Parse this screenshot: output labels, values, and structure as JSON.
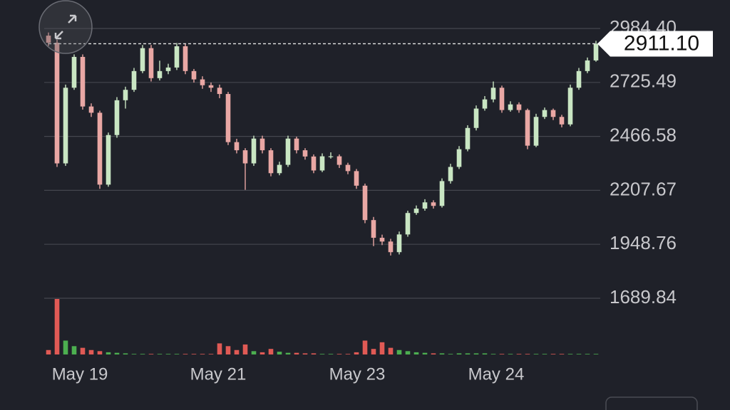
{
  "chart_data": {
    "type": "candlestick",
    "open": [
      2950,
      2916,
      2337,
      2700,
      2848,
      2610,
      2580,
      2235,
      2473,
      2640,
      2690,
      2780,
      2890,
      2746,
      2780,
      2797,
      2899,
      2780,
      2740,
      2712,
      2700,
      2670,
      2439,
      2400,
      2337,
      2456,
      2400,
      2290,
      2330,
      2456,
      2400,
      2370,
      2303,
      2371,
      2371,
      2330,
      2300,
      2230,
      2065,
      1980,
      1962,
      1911,
      1996,
      2099,
      2120,
      2150,
      2133,
      2252,
      2320,
      2405,
      2507,
      2600,
      2644,
      2700,
      2593,
      2620,
      2593,
      2422,
      2560,
      2593,
      2560,
      2524,
      2700,
      2780,
      2831
    ],
    "high": [
      2965,
      2930,
      2715,
      2860,
      2860,
      2625,
      2590,
      2485,
      2655,
      2705,
      2795,
      2905,
      2905,
      2830,
      2815,
      2915,
      2910,
      2790,
      2755,
      2725,
      2715,
      2680,
      2455,
      2410,
      2470,
      2470,
      2410,
      2345,
      2470,
      2465,
      2410,
      2380,
      2385,
      2390,
      2380,
      2340,
      2310,
      2240,
      2080,
      1995,
      1975,
      2010,
      2110,
      2135,
      2165,
      2160,
      2265,
      2335,
      2420,
      2520,
      2615,
      2660,
      2730,
      2710,
      2635,
      2630,
      2600,
      2575,
      2605,
      2600,
      2570,
      2715,
      2795,
      2845,
      2925
    ],
    "low": [
      2900,
      2320,
      2325,
      2690,
      2595,
      2560,
      2215,
      2225,
      2460,
      2600,
      2680,
      2770,
      2730,
      2735,
      2765,
      2785,
      2765,
      2725,
      2695,
      2680,
      2650,
      2425,
      2385,
      2210,
      2325,
      2385,
      2275,
      2280,
      2320,
      2385,
      2355,
      2290,
      2295,
      2360,
      2315,
      2285,
      2215,
      2050,
      1940,
      1945,
      1895,
      1900,
      1985,
      2090,
      2110,
      2120,
      2125,
      2240,
      2310,
      2395,
      2495,
      2590,
      2630,
      2580,
      2585,
      2580,
      2405,
      2415,
      2550,
      2545,
      2510,
      2515,
      2690,
      2770,
      2825
    ],
    "close": [
      2916,
      2337,
      2700,
      2848,
      2610,
      2580,
      2235,
      2473,
      2640,
      2690,
      2780,
      2890,
      2746,
      2780,
      2797,
      2899,
      2780,
      2740,
      2712,
      2700,
      2670,
      2439,
      2400,
      2337,
      2456,
      2400,
      2290,
      2330,
      2456,
      2400,
      2370,
      2303,
      2371,
      2371,
      2330,
      2300,
      2230,
      2065,
      1980,
      1962,
      1911,
      1996,
      2099,
      2120,
      2150,
      2133,
      2252,
      2320,
      2405,
      2507,
      2600,
      2644,
      2700,
      2593,
      2620,
      2593,
      2422,
      2560,
      2593,
      2560,
      2524,
      2700,
      2780,
      2831,
      2911.1
    ],
    "volume": [
      8,
      100,
      25,
      15,
      12,
      8,
      6,
      4,
      3,
      2,
      1,
      1,
      1,
      1,
      1,
      1,
      1,
      1,
      1,
      1,
      20,
      15,
      8,
      18,
      6,
      4,
      10,
      5,
      3,
      3,
      2,
      2,
      1,
      1,
      1,
      1,
      4,
      25,
      10,
      22,
      12,
      8,
      6,
      4,
      3,
      2,
      2,
      1,
      2,
      2,
      2,
      2,
      1,
      1,
      1,
      1,
      1,
      1,
      1,
      1,
      1,
      1,
      1,
      1,
      1
    ],
    "up_color": "#c9e6c3",
    "down_color": "#e9a7a4",
    "volume_up_color": "#4caf50",
    "volume_down_color": "#e05a55",
    "xlim": [
      -0.5,
      64.5
    ],
    "xticks": [
      {
        "value": 3.67,
        "label": "May 19"
      },
      {
        "value": 19.83,
        "label": "May 21"
      },
      {
        "value": 36.08,
        "label": "May 23"
      },
      {
        "value": 52.33,
        "label": "May 24"
      }
    ],
    "ylim": [
      1689.84,
      2984.4
    ],
    "yticks": [
      1689.84,
      1948.76,
      2207.67,
      2466.58,
      2725.49,
      {
        "value": 2984.4,
        "label": "2984.40"
      }
    ],
    "volume_lim": [
      0,
      100
    ],
    "last_price": {
      "value": 2911.1,
      "label": "2911.10"
    },
    "grid": true
  }
}
